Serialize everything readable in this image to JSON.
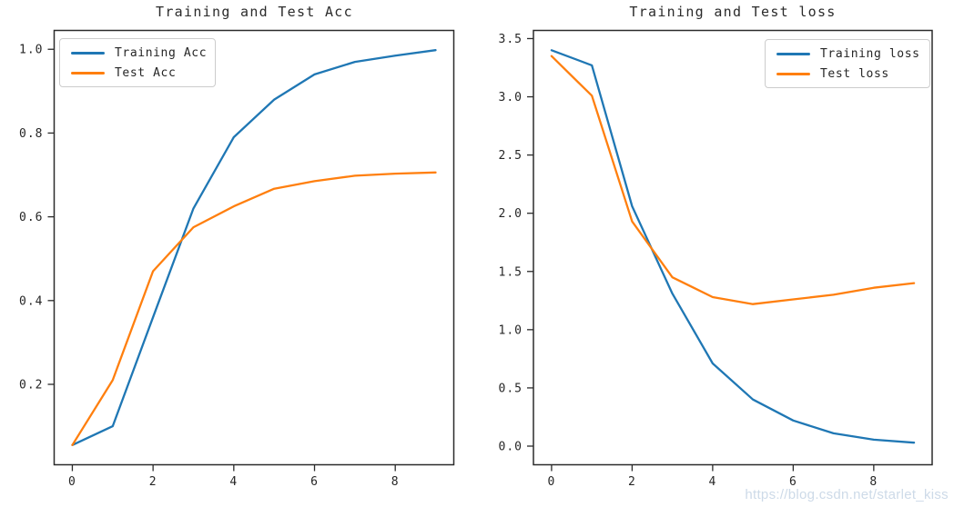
{
  "figure": {
    "background": "#ffffff",
    "axis_color": "#2b2b2b",
    "text_color": "#262626"
  },
  "watermark": {
    "text": "https://blog.csdn.net/starlet_kiss",
    "color": "#c7d5e4"
  },
  "chart_data": [
    {
      "type": "line",
      "title": "Training and Test Acc",
      "xlabel": "",
      "ylabel": "",
      "x": [
        0,
        1,
        2,
        3,
        4,
        5,
        6,
        7,
        8,
        9
      ],
      "series": [
        {
          "name": "Training Acc",
          "color": "#1f77b4",
          "values": [
            0.055,
            0.1,
            0.36,
            0.62,
            0.79,
            0.88,
            0.94,
            0.97,
            0.985,
            0.998
          ]
        },
        {
          "name": "Test Acc",
          "color": "#ff7f0e",
          "values": [
            0.055,
            0.21,
            0.47,
            0.575,
            0.625,
            0.667,
            0.685,
            0.698,
            0.703,
            0.706
          ]
        }
      ],
      "xticks": [
        0,
        2,
        4,
        6,
        8
      ],
      "xtick_labels": [
        "0",
        "2",
        "4",
        "6",
        "8"
      ],
      "yticks": [
        0.2,
        0.4,
        0.6,
        0.8,
        1.0
      ],
      "ytick_labels": [
        "0.2",
        "0.4",
        "0.6",
        "0.8",
        "1.0"
      ],
      "xlim": [
        -0.45,
        9.45
      ],
      "ylim": [
        0.008,
        1.045
      ],
      "grid": false,
      "legend_position": "upper-left"
    },
    {
      "type": "line",
      "title": "Training and Test loss",
      "xlabel": "",
      "ylabel": "",
      "x": [
        0,
        1,
        2,
        3,
        4,
        5,
        6,
        7,
        8,
        9
      ],
      "series": [
        {
          "name": "Training loss",
          "color": "#1f77b4",
          "values": [
            3.4,
            3.27,
            2.06,
            1.31,
            0.71,
            0.4,
            0.22,
            0.11,
            0.055,
            0.03
          ]
        },
        {
          "name": "Test loss",
          "color": "#ff7f0e",
          "values": [
            3.35,
            3.01,
            1.93,
            1.45,
            1.28,
            1.22,
            1.26,
            1.3,
            1.36,
            1.4
          ]
        }
      ],
      "xticks": [
        0,
        2,
        4,
        6,
        8
      ],
      "xtick_labels": [
        "0",
        "2",
        "4",
        "6",
        "8"
      ],
      "yticks": [
        0.0,
        0.5,
        1.0,
        1.5,
        2.0,
        2.5,
        3.0,
        3.5
      ],
      "ytick_labels": [
        "0.0",
        "0.5",
        "1.0",
        "1.5",
        "2.0",
        "2.5",
        "3.0",
        "3.5"
      ],
      "xlim": [
        -0.45,
        9.45
      ],
      "ylim": [
        -0.16,
        3.57
      ],
      "grid": false,
      "legend_position": "upper-right"
    }
  ]
}
